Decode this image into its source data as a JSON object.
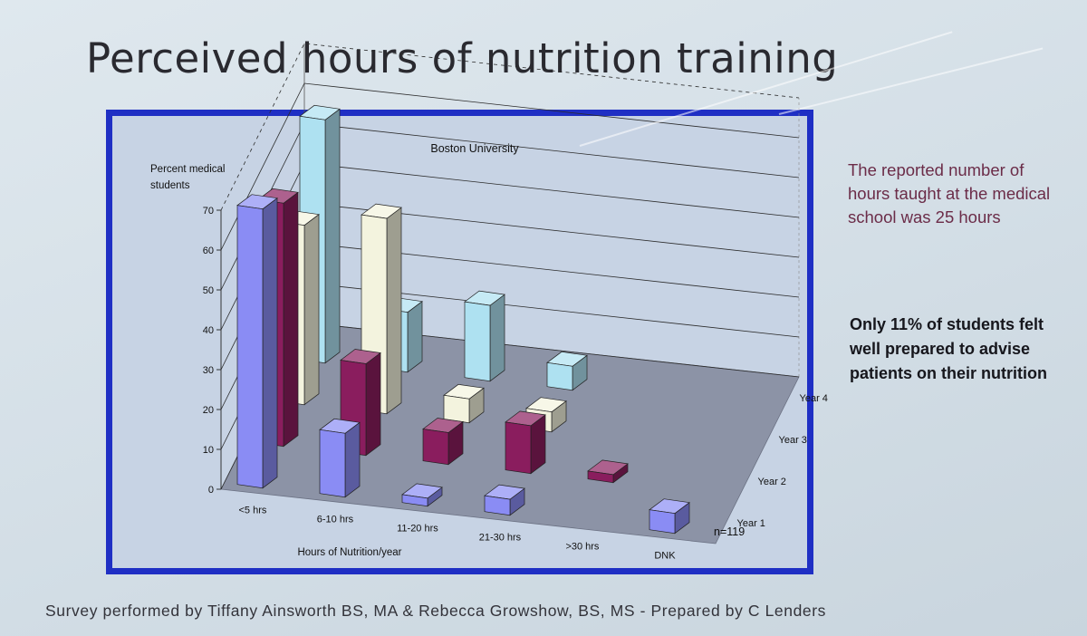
{
  "slide": {
    "title": "Perceived hours of nutrition training",
    "note": "The reported number of hours taught at the medical school was 25 hours",
    "note_bold": "Only 11% of students felt well prepared to advise patients on their nutrition",
    "footer": "Survey performed by Tiffany Ainsworth BS, MA & Rebecca  Growshow, BS, MS - Prepared by C Lenders"
  },
  "chart_data": {
    "type": "bar",
    "subtype": "3d-clustered-column",
    "title": "Boston University",
    "ylabel_lines": [
      "Percent medical",
      "students"
    ],
    "xlabel": "Hours of Nutrition/year",
    "annotation": "n=119",
    "ylim": [
      0,
      70
    ],
    "yticks": [
      0,
      10,
      20,
      30,
      40,
      50,
      60,
      70
    ],
    "categories": [
      "<5 hrs",
      "6-10 hrs",
      "11-20 hrs",
      "21-30 hrs",
      ">30 hrs",
      "DNK"
    ],
    "series": [
      {
        "name": "Year 1",
        "color": "#8a8cf4",
        "values": [
          70,
          16,
          2,
          4,
          0,
          5
        ]
      },
      {
        "name": "Year 2",
        "color": "#8a1d5e",
        "values": [
          61,
          23,
          8,
          12,
          2,
          0
        ]
      },
      {
        "name": "Year 3",
        "color": "#f3f3de",
        "values": [
          45,
          49,
          6,
          5,
          0,
          0
        ]
      },
      {
        "name": "Year 4",
        "color": "#aee1f1",
        "values": [
          61,
          15,
          19,
          6,
          0,
          0
        ]
      }
    ],
    "legend": "depth-axis-right"
  }
}
